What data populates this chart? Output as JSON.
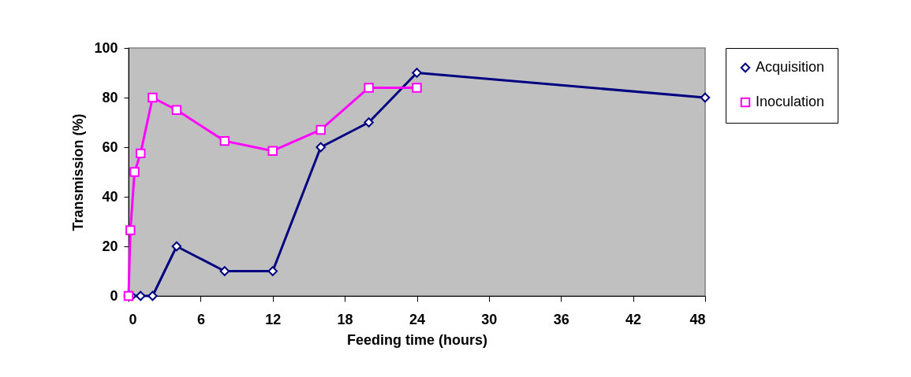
{
  "chart_data": {
    "type": "line",
    "xlabel": "Feeding time (hours)",
    "ylabel": "Transmission (%)",
    "xlim": [
      0,
      48
    ],
    "xticks": [
      0,
      6,
      12,
      18,
      24,
      30,
      36,
      42,
      48
    ],
    "ylim": [
      0,
      100
    ],
    "yticks": [
      0,
      20,
      40,
      60,
      80,
      100
    ],
    "grid": false,
    "legend": "right",
    "line_style": "solid",
    "series": [
      {
        "name": "Acquisition",
        "color": "#000080",
        "marker": "diamond",
        "x": [
          0,
          0.25,
          1,
          2,
          4,
          8,
          12,
          16,
          20,
          24,
          48
        ],
        "values": [
          0,
          0,
          0,
          0,
          20,
          10,
          10,
          60,
          70,
          90,
          80
        ]
      },
      {
        "name": "Inoculation",
        "color": "#ff00ff",
        "marker": "square",
        "x": [
          0,
          0.15,
          0.5,
          1,
          2,
          4,
          8,
          12,
          16,
          20,
          24
        ],
        "values": [
          0,
          26.5,
          50,
          57.5,
          80,
          75,
          62.5,
          58.5,
          67,
          84,
          84
        ]
      }
    ]
  }
}
